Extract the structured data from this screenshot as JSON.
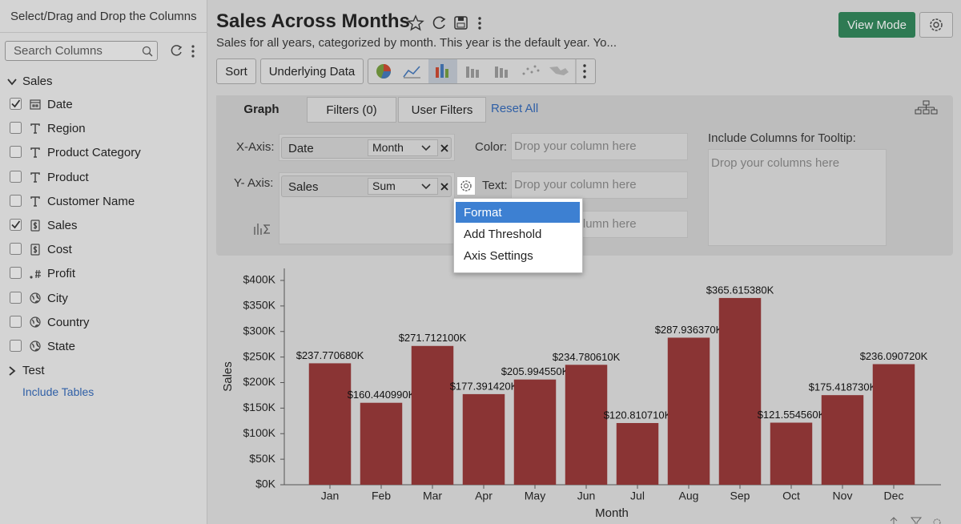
{
  "sidebar": {
    "title": "Select/Drag and Drop the Columns",
    "search_placeholder": "Search Columns",
    "groups": [
      {
        "name": "Sales",
        "expanded": true,
        "columns": [
          {
            "name": "Date",
            "checked": true,
            "kind": "date"
          },
          {
            "name": "Region",
            "checked": false,
            "kind": "text"
          },
          {
            "name": "Product Category",
            "checked": false,
            "kind": "text"
          },
          {
            "name": "Product",
            "checked": false,
            "kind": "text"
          },
          {
            "name": "Customer Name",
            "checked": false,
            "kind": "text"
          },
          {
            "name": "Sales",
            "checked": true,
            "kind": "currency"
          },
          {
            "name": "Cost",
            "checked": false,
            "kind": "currency"
          },
          {
            "name": "Profit",
            "checked": false,
            "kind": "number"
          },
          {
            "name": "City",
            "checked": false,
            "kind": "geo"
          },
          {
            "name": "Country",
            "checked": false,
            "kind": "geo"
          },
          {
            "name": "State",
            "checked": false,
            "kind": "geo"
          }
        ]
      },
      {
        "name": "Test",
        "expanded": false,
        "columns": []
      }
    ],
    "include_tables": "Include Tables"
  },
  "header": {
    "title": "Sales Across Months",
    "description": "Sales for all years, categorized by month. This year is the default year. Yo...",
    "view_mode": "View Mode"
  },
  "toolbar": {
    "sort": "Sort",
    "underlying_data": "Underlying Data"
  },
  "tabs": {
    "graph": "Graph",
    "filters": "Filters  (0)",
    "user_filters": "User Filters",
    "reset_all": "Reset All"
  },
  "shelf": {
    "x_axis_label": "X-Axis:",
    "x_column": "Date",
    "x_function": "Month",
    "y_axis_label": "Y- Axis:",
    "y_column": "Sales",
    "y_function": "Sum",
    "color_label": "Color:",
    "color_placeholder": "Drop your column here",
    "text_label": "Text:",
    "text_placeholder": "Drop your column here",
    "third_placeholder": "Drop your column here",
    "tooltip_label": "Include Columns for Tooltip:",
    "tooltip_placeholder": "Drop your columns here"
  },
  "menu": {
    "items": [
      "Format",
      "Add Threshold",
      "Axis Settings"
    ],
    "selected": 0
  },
  "chart_data": {
    "type": "bar",
    "x_label": "Month",
    "y_label": "Sales",
    "color": "#8a3434",
    "categories": [
      "Jan",
      "Feb",
      "Mar",
      "Apr",
      "May",
      "Jun",
      "Jul",
      "Aug",
      "Sep",
      "Oct",
      "Nov",
      "Dec"
    ],
    "values": [
      237770.68,
      160440.99,
      271712.1,
      177391.42,
      205994.55,
      234780.61,
      120810.71,
      287936.37,
      365615.38,
      121554.56,
      175418.73,
      236090.72
    ],
    "value_labels": [
      "$237.770680K",
      "$160.440990K",
      "$271.712100K",
      "$177.391420K",
      "$205.994550K",
      "$234.780610K",
      "$120.810710K",
      "$287.936370K",
      "$365.615380K",
      "$121.554560K",
      "$175.418730K",
      "$236.090720K"
    ],
    "ylim": [
      0,
      400000
    ],
    "yticks": [
      {
        "value": 0,
        "label": "$0K"
      },
      {
        "value": 50000,
        "label": "$50K"
      },
      {
        "value": 100000,
        "label": "$100K"
      },
      {
        "value": 150000,
        "label": "$150K"
      },
      {
        "value": 200000,
        "label": "$200K"
      },
      {
        "value": 250000,
        "label": "$250K"
      },
      {
        "value": 300000,
        "label": "$300K"
      },
      {
        "value": 350000,
        "label": "$350K"
      },
      {
        "value": 400000,
        "label": "$400K"
      }
    ],
    "grid": false
  }
}
